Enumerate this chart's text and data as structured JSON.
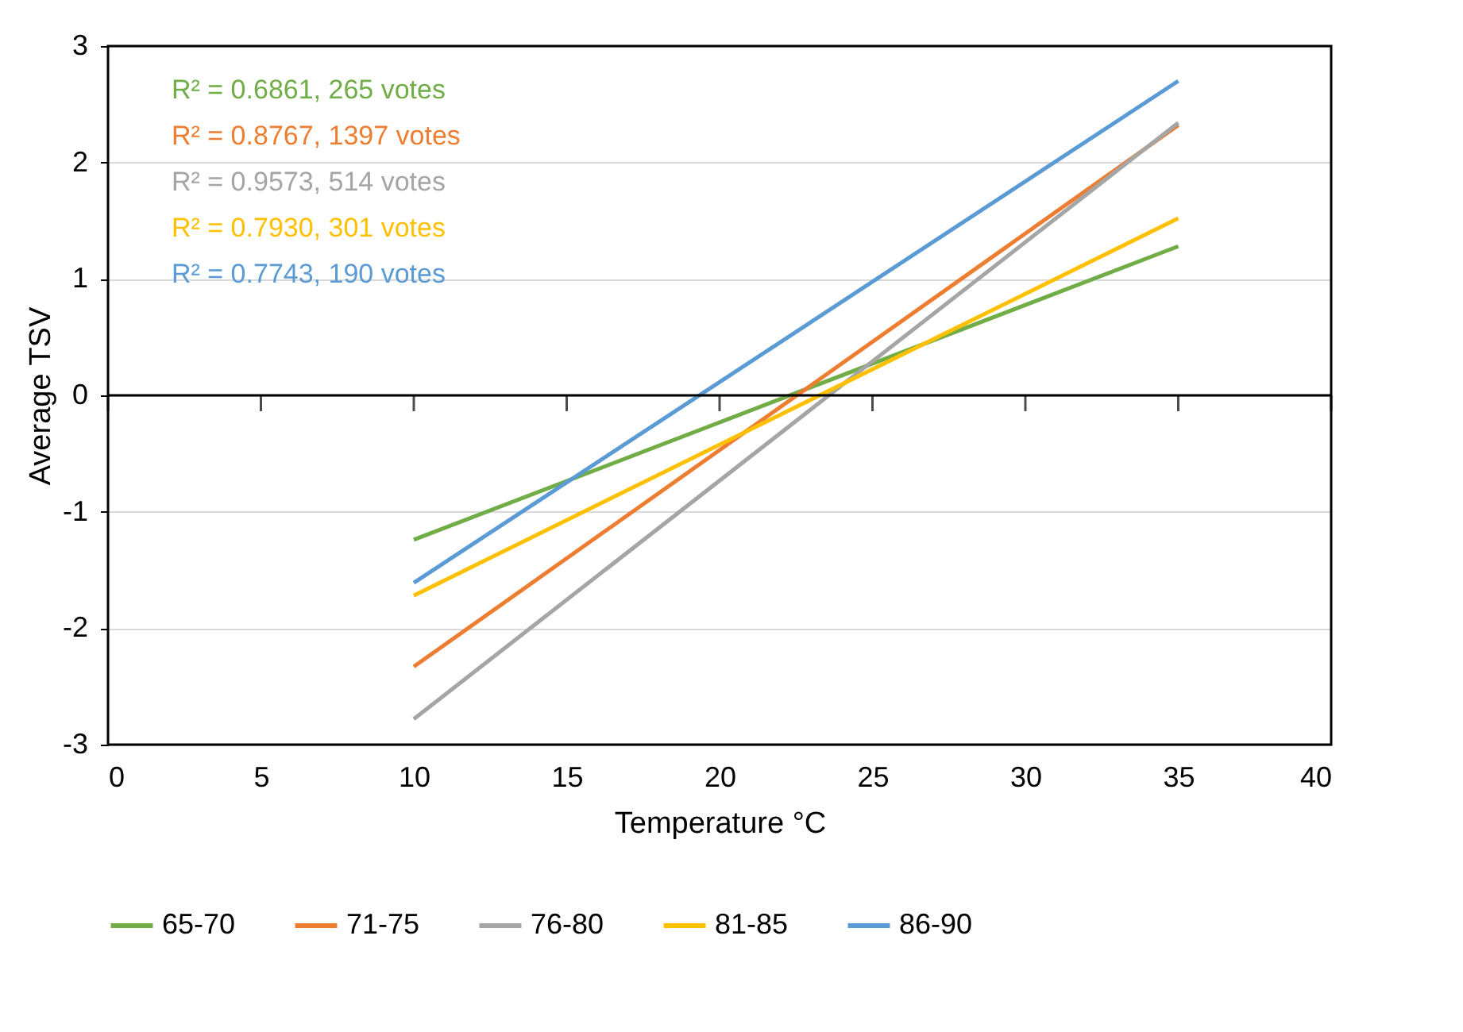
{
  "chart_data": {
    "type": "line",
    "xlabel": "Temperature °C",
    "ylabel": "Average TSV",
    "xlim": [
      0,
      40
    ],
    "xticks": [
      0,
      5,
      10,
      15,
      20,
      25,
      30,
      35,
      40
    ],
    "ylim": [
      -3,
      3
    ],
    "yticks": [
      -3,
      -2,
      -1,
      0,
      1,
      2,
      3
    ],
    "x": [
      10,
      35
    ],
    "grid": "y",
    "legend": "bottom",
    "marker": "none",
    "line_style": "solid",
    "ref_lines": [
      {
        "axis": "y",
        "value": 0,
        "color": "#000000"
      }
    ],
    "annotations": [
      "R² = 0.6861, 265 votes",
      "R² = 0.8767, 1397 votes",
      "R² = 0.9573, 514 votes",
      "R² = 0.7930, 301 votes",
      "R² = 0.7743, 190 votes"
    ],
    "series": [
      {
        "name": "65-70",
        "color": "#70ad47",
        "values": [
          -1.24,
          1.28
        ]
      },
      {
        "name": "71-75",
        "color": "#ed7d31",
        "values": [
          -2.33,
          2.32
        ]
      },
      {
        "name": "76-80",
        "color": "#a5a5a5",
        "values": [
          -2.78,
          2.34
        ]
      },
      {
        "name": "81-85",
        "color": "#ffc000",
        "values": [
          -1.72,
          1.52
        ]
      },
      {
        "name": "86-90",
        "color": "#5b9bd5",
        "values": [
          -1.61,
          2.7
        ]
      }
    ]
  }
}
